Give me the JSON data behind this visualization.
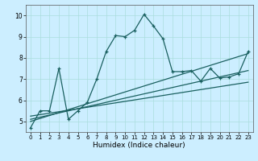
{
  "xlabel": "Humidex (Indice chaleur)",
  "bg_color": "#cceeff",
  "line_color": "#1a6060",
  "grid_color": "#aadddd",
  "xlim": [
    -0.5,
    23.5
  ],
  "ylim": [
    4.5,
    10.5
  ],
  "xticks": [
    0,
    1,
    2,
    3,
    4,
    5,
    6,
    7,
    8,
    9,
    10,
    11,
    12,
    13,
    14,
    15,
    16,
    17,
    18,
    19,
    20,
    21,
    22,
    23
  ],
  "yticks": [
    5,
    6,
    7,
    8,
    9,
    10
  ],
  "main_x": [
    0,
    1,
    2,
    3,
    4,
    5,
    6,
    7,
    8,
    9,
    10,
    11,
    12,
    13,
    14,
    15,
    16,
    17,
    18,
    19,
    20,
    21,
    22,
    23
  ],
  "main_y": [
    4.7,
    5.5,
    5.5,
    7.5,
    5.1,
    5.5,
    5.9,
    7.0,
    8.3,
    9.05,
    9.0,
    9.3,
    10.05,
    9.5,
    8.9,
    7.35,
    7.35,
    7.4,
    6.9,
    7.5,
    7.05,
    7.1,
    7.25,
    8.3
  ],
  "trend1_x": [
    0,
    23
  ],
  "trend1_y": [
    5.0,
    8.2
  ],
  "trend2_x": [
    0,
    23
  ],
  "trend2_y": [
    5.1,
    7.4
  ],
  "trend3_x": [
    0,
    23
  ],
  "trend3_y": [
    5.25,
    6.85
  ]
}
